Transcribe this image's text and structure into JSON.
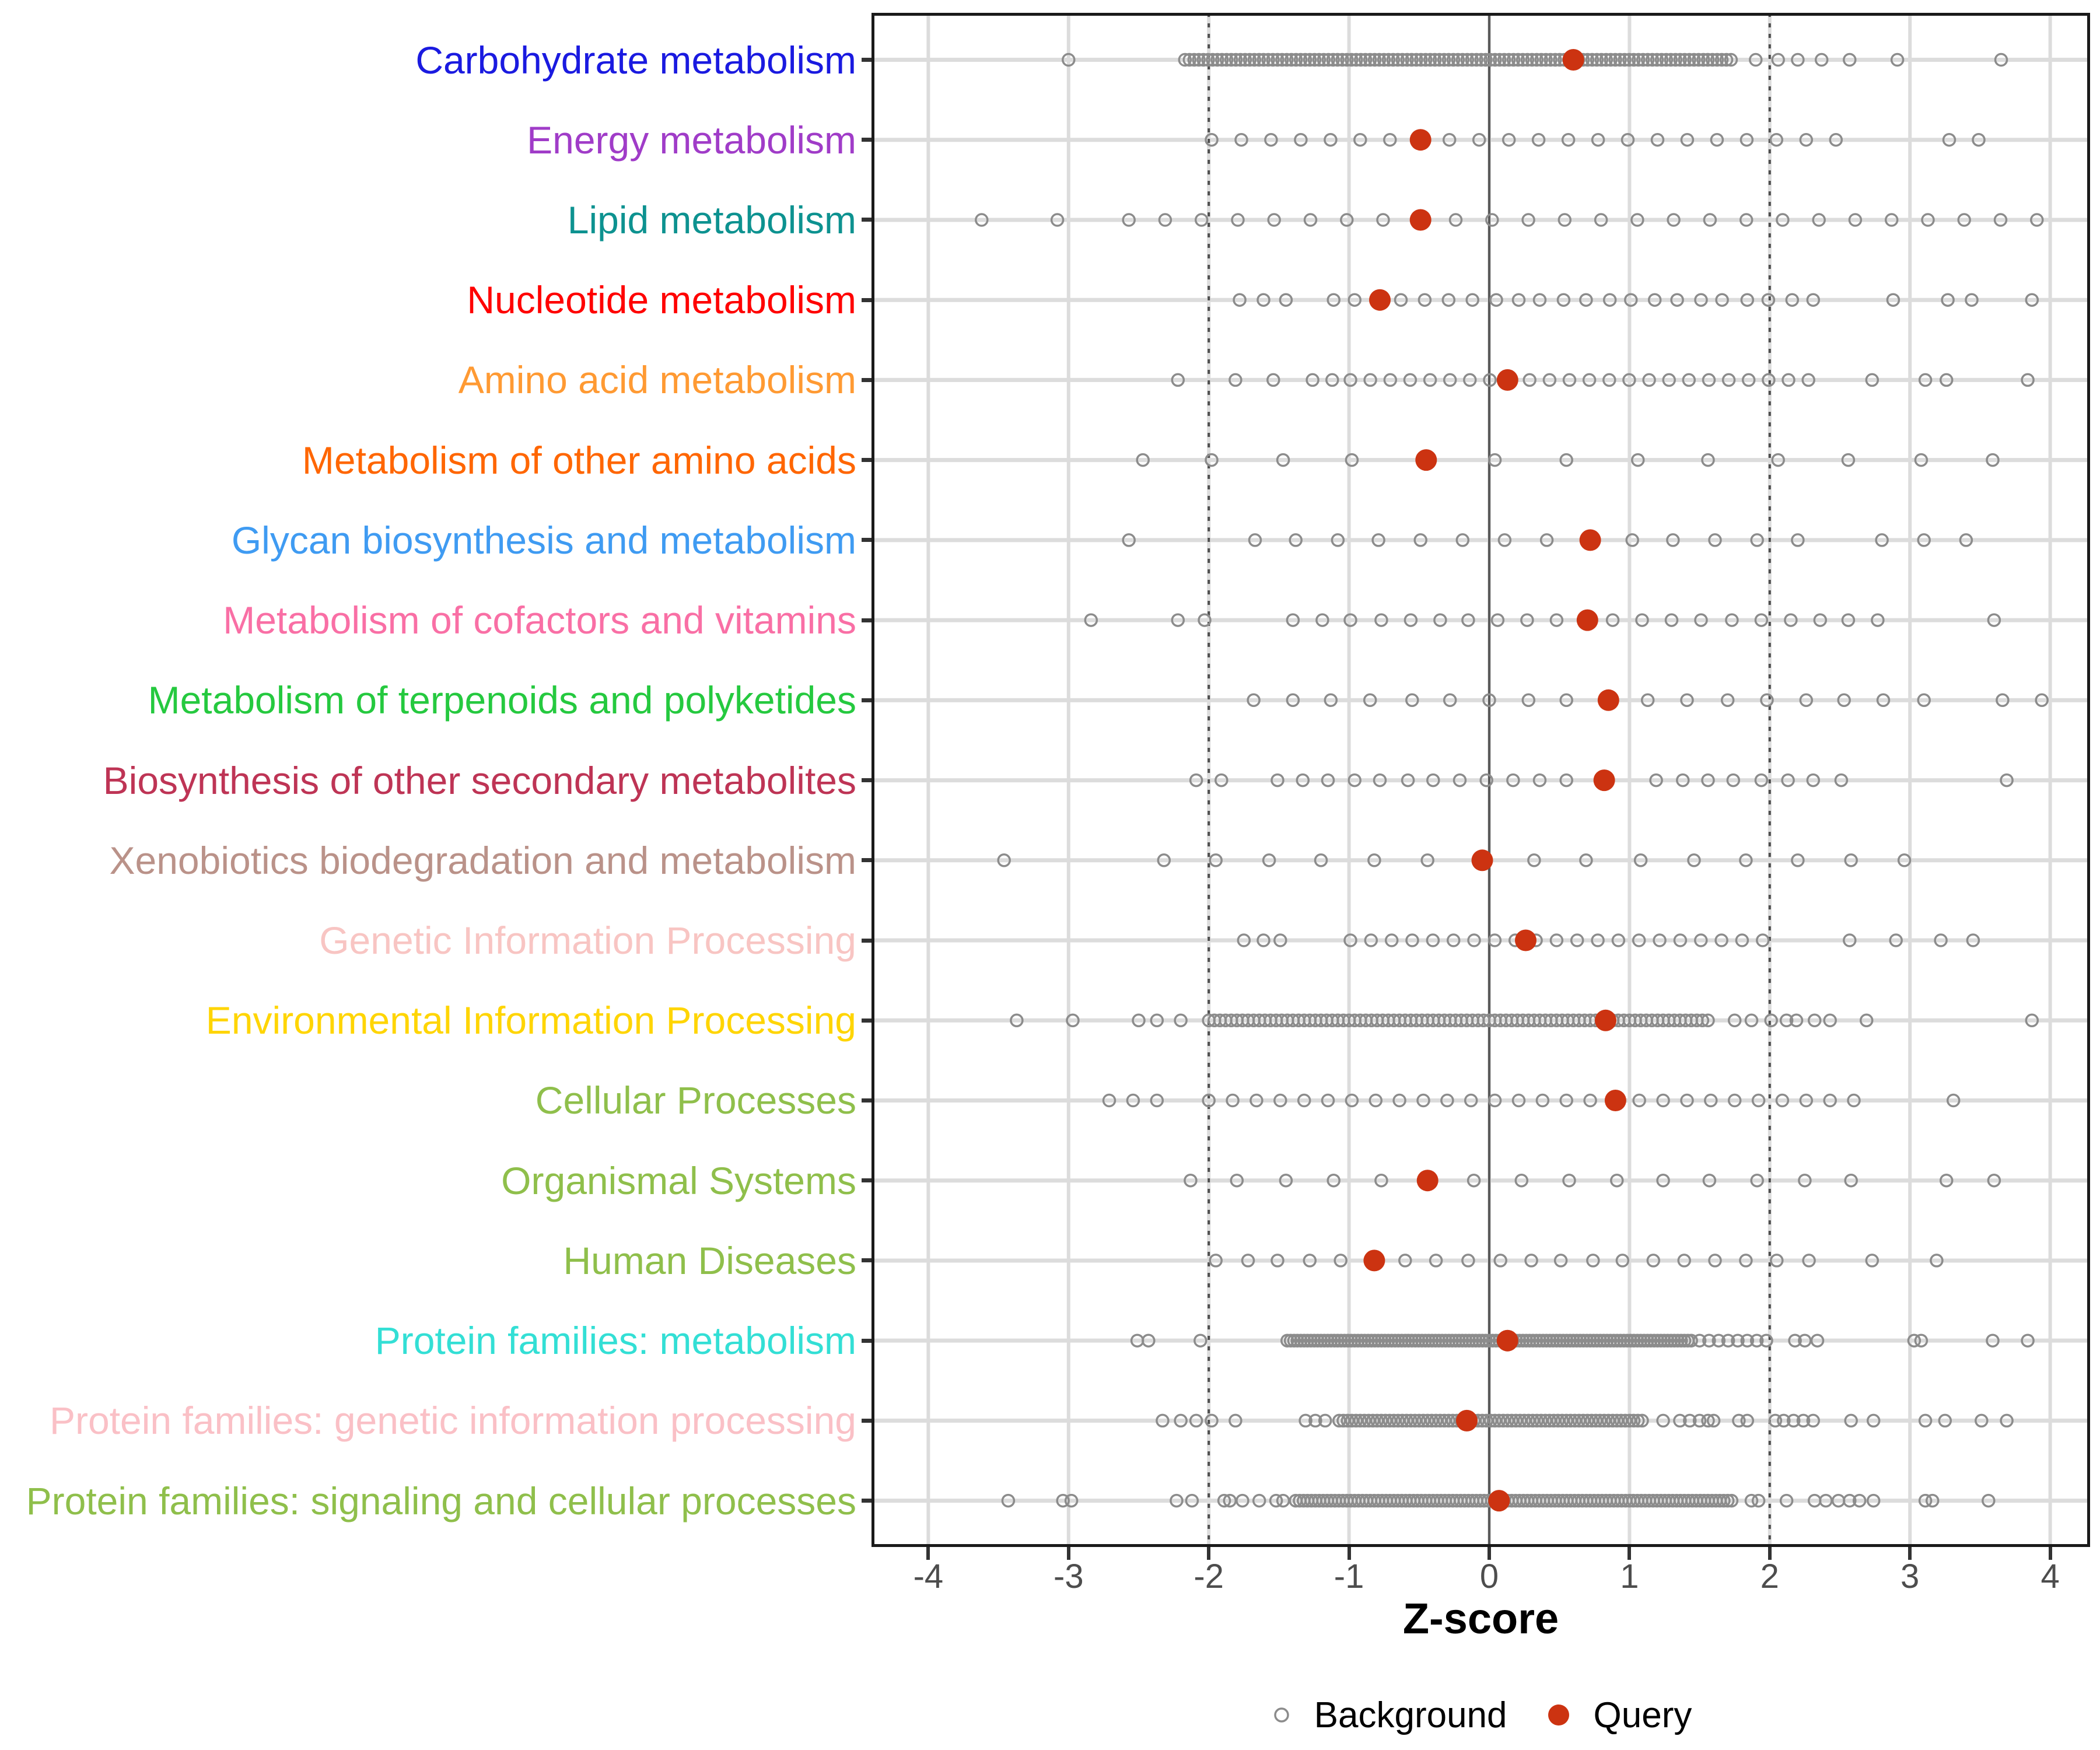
{
  "chart_data": {
    "type": "scatter",
    "variant": "strip-plot",
    "xlabel": "Z-score",
    "x_ticks": [
      -4,
      -3,
      -2,
      -1,
      0,
      1,
      2,
      3,
      4
    ],
    "xlim": [
      -4.4,
      4.3
    ],
    "zero_line": 0,
    "dashed_lines": [
      -2,
      2
    ],
    "grid": "on",
    "legend_position": "bottom",
    "legend": {
      "background_label": "Background",
      "query_label": "Query"
    },
    "colors": {
      "background_stroke": "#8C8C8C",
      "query_fill": "#CC3311",
      "grid_line": "#DCDCDC",
      "zero_line": "#5A5A5A",
      "dashed_line": "#4D4D4D",
      "axis_tick": "#333333",
      "axis_text": "#4D4D4D",
      "panel_border": "#1A1A1A"
    },
    "categories": [
      {
        "label": "Carbohydrate metabolism",
        "color": "#1A1AE0",
        "query": 0.6,
        "background": [
          -3.0,
          [
            -2.17,
            1.74,
            0.033
          ],
          1.9,
          2.06,
          2.2,
          2.37,
          2.57,
          2.91,
          3.65
        ]
      },
      {
        "label": "Energy metabolism",
        "color": "#A03CC8",
        "query": -0.49,
        "background": [
          [
            -1.98,
            2.48,
            0.212
          ],
          3.28,
          3.49
        ]
      },
      {
        "label": "Lipid metabolism",
        "color": "#0D9290",
        "query": -0.49,
        "background": [
          -3.62,
          -3.08,
          [
            -2.57,
            3.92,
            0.259
          ]
        ]
      },
      {
        "label": "Nucleotide metabolism",
        "color": "#FF0000",
        "query": -0.78,
        "background": [
          -1.78,
          -1.61,
          -1.45,
          -1.11,
          -0.96,
          -0.63,
          -0.46,
          -0.29,
          -0.12,
          0.05,
          0.21,
          0.36,
          0.53,
          0.69,
          0.86,
          1.01,
          1.18,
          1.34,
          1.51,
          1.66,
          1.84,
          1.99,
          2.16,
          2.31,
          2.88,
          3.27,
          3.44,
          3.87
        ]
      },
      {
        "label": "Amino acid metabolism",
        "color": "#FF9A33",
        "query": 0.13,
        "background": [
          -2.22,
          -1.81,
          -1.54,
          -1.26,
          -1.12,
          [
            -0.99,
            2.32,
            0.142
          ],
          2.73,
          3.11,
          3.26,
          3.84
        ]
      },
      {
        "label": "Metabolism of other amino acids",
        "color": "#FF6600",
        "query": -0.45,
        "background": [
          -2.47,
          -1.98,
          -1.47,
          -0.98,
          0.04,
          0.55,
          1.06,
          1.56,
          2.06,
          2.56,
          3.08,
          3.59
        ]
      },
      {
        "label": "Glycan biosynthesis and metabolism",
        "color": "#3F9BF2",
        "query": 0.72,
        "background": [
          -2.57,
          -1.67,
          -1.38,
          -1.08,
          -0.79,
          -0.49,
          -0.19,
          0.11,
          0.41,
          1.02,
          1.31,
          1.61,
          1.91,
          2.2,
          2.8,
          3.1,
          3.4
        ]
      },
      {
        "label": "Metabolism of cofactors and vitamins",
        "color": "#F96FA5",
        "query": 0.7,
        "background": [
          -2.84,
          -2.22,
          -2.03,
          -1.4,
          -1.19,
          -0.99,
          -0.77,
          -0.56,
          -0.35,
          -0.15,
          0.06,
          0.27,
          0.48,
          0.88,
          1.09,
          1.3,
          1.51,
          1.73,
          1.94,
          2.15,
          2.36,
          2.56,
          2.77,
          3.6
        ]
      },
      {
        "label": "Metabolism of terpenoids and polyketides",
        "color": "#25C93F",
        "query": 0.85,
        "background": [
          -1.68,
          -1.4,
          -1.13,
          -0.85,
          -0.55,
          -0.28,
          0.0,
          0.28,
          0.55,
          1.13,
          1.41,
          1.7,
          1.98,
          2.26,
          2.53,
          2.81,
          3.1,
          3.66,
          3.94
        ]
      },
      {
        "label": "Biosynthesis of other secondary metabolites",
        "color": "#BE3455",
        "query": 0.82,
        "background": [
          -2.09,
          -1.91,
          -1.51,
          -1.33,
          -1.15,
          -0.96,
          -0.78,
          -0.58,
          -0.4,
          -0.21,
          -0.02,
          0.17,
          0.36,
          0.55,
          1.19,
          1.38,
          1.56,
          1.74,
          1.94,
          2.13,
          2.31,
          2.51,
          3.69
        ]
      },
      {
        "label": "Xenobiotics biodegradation and metabolism",
        "color": "#BA9289",
        "query": -0.05,
        "background": [
          -3.46,
          -2.32,
          -1.95,
          -1.57,
          -1.2,
          -0.82,
          -0.44,
          0.32,
          0.69,
          1.08,
          1.46,
          1.83,
          2.2,
          2.58,
          2.96
        ]
      },
      {
        "label": "Genetic Information Processing",
        "color": "#F8C5C3",
        "query": 0.26,
        "background": [
          -1.75,
          -1.61,
          -1.49,
          [
            -0.99,
            1.96,
            0.147
          ],
          2.57,
          2.9,
          3.22,
          3.45
        ]
      },
      {
        "label": "Environmental Information Processing",
        "color": "#FFD503",
        "query": 0.83,
        "background": [
          -3.37,
          -2.97,
          -2.5,
          -2.37,
          -2.2,
          [
            -2.0,
            1.58,
            0.04
          ],
          1.75,
          1.87,
          2.01,
          2.12,
          2.19,
          2.32,
          2.43,
          2.69,
          3.87
        ]
      },
      {
        "label": "Cellular Processes",
        "color": "#8FBF4B",
        "query": 0.9,
        "background": [
          -2.71,
          -2.54,
          -2.37,
          [
            -2.0,
            0.73,
            0.17
          ],
          [
            1.07,
            2.75,
            0.17
          ],
          3.31
        ]
      },
      {
        "label": "Organismal Systems",
        "color": "#8FBF4B",
        "query": -0.44,
        "background": [
          -2.13,
          -1.8,
          -1.45,
          -1.11,
          -0.77,
          -0.11,
          0.23,
          0.57,
          0.91,
          1.24,
          1.57,
          1.91,
          2.25,
          2.58,
          3.26,
          3.6
        ]
      },
      {
        "label": "Human Diseases",
        "color": "#8FBF4B",
        "query": -0.82,
        "background": [
          -1.95,
          -1.72,
          -1.51,
          -1.28,
          -1.06,
          -0.6,
          -0.38,
          -0.15,
          0.08,
          0.3,
          0.51,
          0.74,
          0.95,
          1.17,
          1.39,
          1.61,
          1.83,
          2.05,
          2.28,
          2.73,
          3.19
        ]
      },
      {
        "label": "Protein families: metabolism",
        "color": "#33DFD5",
        "query": 0.13,
        "background": [
          -2.51,
          -2.43,
          -2.06,
          [
            -1.44,
            1.44,
            0.024
          ],
          [
            1.5,
            1.98,
            0.068
          ],
          2.18,
          2.25,
          2.34,
          3.03,
          3.08,
          3.59,
          3.84
        ]
      },
      {
        "label": "Protein families: genetic information processing",
        "color": "#FAC0C6",
        "query": -0.16,
        "background": [
          -2.33,
          -2.2,
          -2.09,
          -1.98,
          -1.81,
          -1.31,
          -1.24,
          -1.17,
          [
            -1.07,
            1.1,
            0.03
          ],
          1.24,
          1.36,
          1.43,
          1.5,
          1.56,
          1.6,
          1.78,
          1.84,
          2.04,
          2.1,
          2.17,
          2.24,
          2.31,
          2.58,
          2.74,
          3.11,
          3.25,
          3.51,
          3.69
        ]
      },
      {
        "label": "Protein families: signaling and cellular processes",
        "color": "#8FBF4B",
        "query": 0.07,
        "background": [
          -3.43,
          -3.04,
          -2.98,
          -2.23,
          -2.12,
          -1.89,
          -1.85,
          -1.76,
          -1.64,
          -1.52,
          -1.47,
          [
            -1.38,
            1.75,
            0.028
          ],
          1.87,
          1.92,
          2.12,
          2.32,
          2.4,
          2.49,
          2.57,
          2.64,
          2.74,
          3.11,
          3.16,
          3.56
        ]
      }
    ]
  }
}
